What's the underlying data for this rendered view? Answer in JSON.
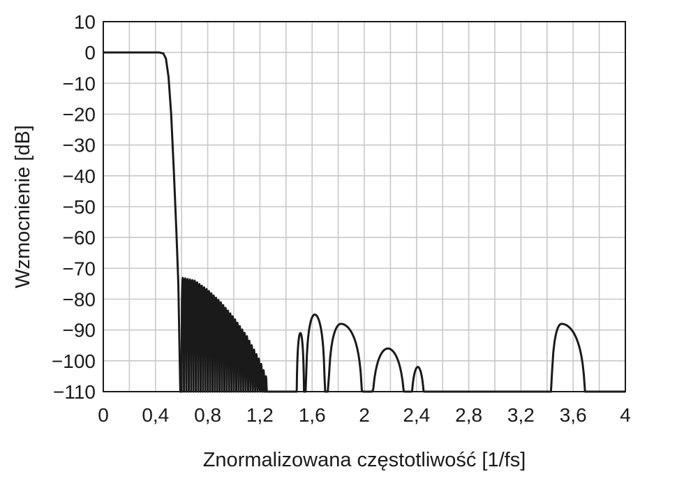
{
  "chart_data": {
    "type": "line",
    "title": "",
    "xlabel": "Znormalizowana częstotliwość [1/fs]",
    "ylabel": "Wzmocnienie [dB]",
    "xlim": [
      0,
      4
    ],
    "ylim": [
      -110,
      10
    ],
    "grid": true,
    "x_ticks": [
      0,
      0.2,
      0.4,
      0.6,
      0.8,
      1.0,
      1.2,
      1.4,
      1.6,
      1.8,
      2.0,
      2.2,
      2.4,
      2.6,
      2.8,
      3.0,
      3.2,
      3.4,
      3.6,
      3.8,
      4.0
    ],
    "x_tick_labels": [
      {
        "value": 0,
        "label": "0"
      },
      {
        "value": 0.4,
        "label": "0,4"
      },
      {
        "value": 0.8,
        "label": "0,8"
      },
      {
        "value": 1.2,
        "label": "1,2"
      },
      {
        "value": 1.6,
        "label": "1,6"
      },
      {
        "value": 2.0,
        "label": "2"
      },
      {
        "value": 2.4,
        "label": "2,4"
      },
      {
        "value": 2.8,
        "label": "2,8"
      },
      {
        "value": 3.2,
        "label": "3,2"
      },
      {
        "value": 3.6,
        "label": "3,6"
      },
      {
        "value": 4.0,
        "label": "4"
      }
    ],
    "y_tick_labels": [
      {
        "value": 10,
        "label": "10"
      },
      {
        "value": 0,
        "label": "0"
      },
      {
        "value": -10,
        "label": "−10"
      },
      {
        "value": -20,
        "label": "−20"
      },
      {
        "value": -30,
        "label": "−30"
      },
      {
        "value": -40,
        "label": "−40"
      },
      {
        "value": -50,
        "label": "−50"
      },
      {
        "value": -60,
        "label": "−60"
      },
      {
        "value": -70,
        "label": "−70"
      },
      {
        "value": -80,
        "label": "−80"
      },
      {
        "value": -90,
        "label": "−90"
      },
      {
        "value": -100,
        "label": "−100"
      },
      {
        "value": -110,
        "label": "−110"
      }
    ],
    "series": [
      {
        "passband": {
          "x_start": 0,
          "x_end": 0.43,
          "value_db": 0
        },
        "transition": [
          {
            "x": 0.43,
            "y": 0
          },
          {
            "x": 0.46,
            "y": -0.3
          },
          {
            "x": 0.48,
            "y": -2
          },
          {
            "x": 0.5,
            "y": -8
          },
          {
            "x": 0.52,
            "y": -20
          },
          {
            "x": 0.54,
            "y": -38
          },
          {
            "x": 0.56,
            "y": -58
          },
          {
            "x": 0.575,
            "y": -75
          },
          {
            "x": 0.59,
            "y": -110
          }
        ],
        "dense_ripple_region": {
          "x_start": 0.6,
          "x_end": 1.255,
          "floor_db": -110,
          "peak_envelope": [
            {
              "x": 0.6,
              "y": -73
            },
            {
              "x": 0.7,
              "y": -74
            },
            {
              "x": 0.8,
              "y": -77
            },
            {
              "x": 0.9,
              "y": -81
            },
            {
              "x": 1.0,
              "y": -86
            },
            {
              "x": 1.1,
              "y": -92
            },
            {
              "x": 1.2,
              "y": -100
            },
            {
              "x": 1.255,
              "y": -106
            }
          ],
          "approx_lobe_count": 36
        },
        "lobes": [
          {
            "x_start": 1.48,
            "x_end": 1.54,
            "peak_x": 1.51,
            "peak_db": -91
          },
          {
            "x_start": 1.55,
            "x_end": 1.7,
            "peak_x": 1.62,
            "peak_db": -85
          },
          {
            "x_start": 1.72,
            "x_end": 1.99,
            "peak_x": 1.82,
            "peak_db": -88
          },
          {
            "x_start": 2.05,
            "x_end": 2.32,
            "peak_x": 2.18,
            "peak_db": -96
          },
          {
            "x_start": 2.35,
            "x_end": 2.47,
            "peak_x": 2.41,
            "peak_db": -102
          },
          {
            "x_start": 3.43,
            "x_end": 3.7,
            "peak_x": 3.51,
            "peak_db": -88
          }
        ]
      }
    ]
  }
}
